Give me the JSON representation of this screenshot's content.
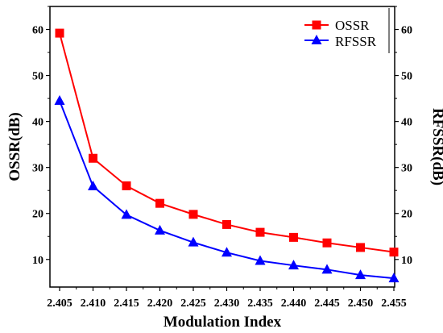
{
  "chart_data": {
    "type": "line",
    "x": [
      2.405,
      2.41,
      2.415,
      2.42,
      2.425,
      2.43,
      2.435,
      2.44,
      2.445,
      2.45,
      2.455
    ],
    "x_tick_labels": [
      "2.405",
      "2.410",
      "2.415",
      "2.420",
      "2.425",
      "2.430",
      "2.435",
      "2.440",
      "2.445",
      "2.450",
      "2.455"
    ],
    "series": [
      {
        "name": "OSSR",
        "axis": "left",
        "color": "#ff0000",
        "marker": "square",
        "values": [
          59.2,
          32.0,
          26.0,
          22.2,
          19.8,
          17.6,
          15.9,
          14.8,
          13.6,
          12.6,
          11.6
        ]
      },
      {
        "name": "RFSSR",
        "axis": "right",
        "color": "#0000ff",
        "marker": "triangle",
        "values": [
          44.5,
          25.9,
          19.7,
          16.3,
          13.7,
          11.5,
          9.7,
          8.7,
          7.8,
          6.6,
          5.9
        ]
      }
    ],
    "xlabel": "Modulation Index",
    "ylabel_left": "OSSR(dB)",
    "ylabel_right": "RFSSR(dB)",
    "xlim": [
      2.405,
      2.455
    ],
    "ylim_left": [
      4,
      65
    ],
    "ylim_right": [
      4,
      65
    ],
    "y_ticks": [
      10,
      20,
      30,
      40,
      50,
      60
    ],
    "legend_position": "top-right",
    "grid": false
  }
}
